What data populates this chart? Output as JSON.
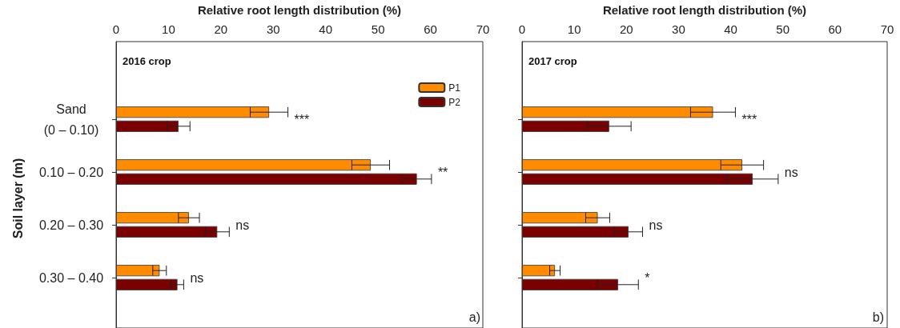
{
  "chart_data": [
    {
      "type": "bar",
      "orientation": "horizontal",
      "xlabel": "Relative root length distribution (%)",
      "ylabel": "Soil layer (m)",
      "subtitle": "2016 crop",
      "categories": [
        "Sand\n(0 – 0.10)",
        "0.10 – 0.20",
        "0.20 – 0.30",
        "0.30 – 0.40"
      ],
      "series": [
        {
          "name": "P1",
          "color": "#ff8c00",
          "values": [
            29.2,
            48.6,
            13.9,
            8.3
          ],
          "errors": [
            3.6,
            3.6,
            2.0,
            1.3
          ]
        },
        {
          "name": "P2",
          "color": "#7b0000",
          "values": [
            11.9,
            57.4,
            19.3,
            11.7
          ],
          "errors": [
            2.2,
            2.8,
            2.3,
            1.2
          ]
        }
      ],
      "xlim": [
        0,
        70
      ],
      "xticks": [
        0,
        10,
        20,
        30,
        40,
        50,
        60,
        70
      ],
      "grid": false,
      "legend": "top right",
      "annotations": [
        "a)",
        "***",
        "**",
        "ns",
        "ns"
      ]
    },
    {
      "type": "bar",
      "orientation": "horizontal",
      "xlabel": "Relative root length distribution (%)",
      "subtitle": "2017 crop",
      "categories": [
        null,
        null,
        null,
        null
      ],
      "series": [
        {
          "color": "#ff8c00",
          "values": [
            36.6,
            42.2,
            14.5,
            6.3
          ],
          "errors": [
            4.3,
            4.1,
            2.3,
            1.0
          ]
        },
        {
          "color": "#7b0000",
          "values": [
            16.7,
            44.2,
            20.4,
            18.4
          ],
          "errors": [
            4.2,
            4.9,
            2.7,
            3.9
          ]
        }
      ],
      "xlim": [
        0,
        70
      ],
      "xticks": [
        0,
        10,
        20,
        30,
        40,
        50,
        60,
        70
      ],
      "grid": false,
      "tick_labels": "x",
      "annotations": [
        "b)",
        "***",
        "ns",
        "ns",
        "*"
      ]
    }
  ]
}
